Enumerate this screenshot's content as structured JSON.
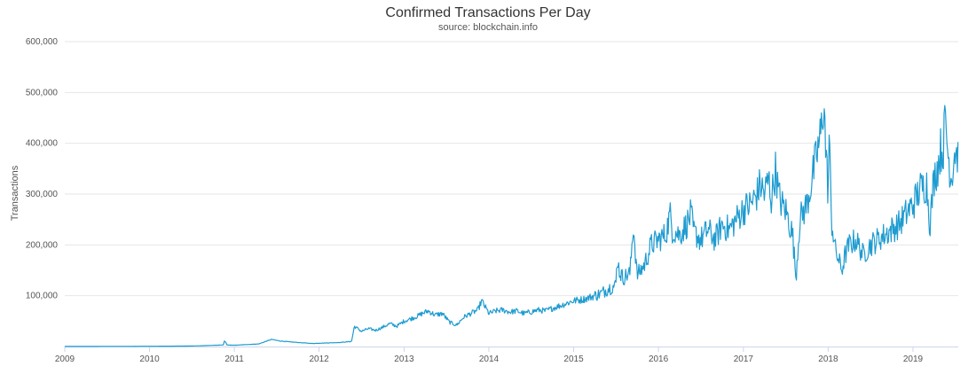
{
  "chart_data": {
    "type": "line",
    "title": "Confirmed Transactions Per Day",
    "subtitle": "source: blockchain.info",
    "ylabel": "Transactions",
    "xlabel": "",
    "x_range": [
      "2009-01-01",
      "2019-07-15"
    ],
    "ylim": [
      0,
      600000
    ],
    "y_ticks": [
      100000,
      200000,
      300000,
      400000,
      500000,
      600000
    ],
    "y_tick_labels": [
      "100,000",
      "200,000",
      "300,000",
      "400,000",
      "500,000",
      "600,000"
    ],
    "x_ticks": [
      "2009",
      "2010",
      "2011",
      "2012",
      "2013",
      "2014",
      "2015",
      "2016",
      "2017",
      "2018",
      "2019"
    ],
    "grid": true,
    "legend": "none",
    "line_color": "#1e9bd0",
    "series": [
      {
        "x": [
          "2009-01-01",
          "2009-07-01",
          "2010-01-01",
          "2010-07-01",
          "2010-11-15",
          "2010-11-20",
          "2010-12-01",
          "2011-01-01",
          "2011-03-01",
          "2011-04-15",
          "2011-06-10",
          "2011-07-15",
          "2011-09-01",
          "2011-12-01",
          "2012-02-01",
          "2012-04-01",
          "2012-05-20",
          "2012-06-01",
          "2012-07-01",
          "2012-08-01",
          "2012-09-01",
          "2012-10-01",
          "2012-11-01",
          "2012-12-01",
          "2013-01-01",
          "2013-02-01",
          "2013-03-01",
          "2013-03-20",
          "2013-04-15",
          "2013-05-15",
          "2013-06-15",
          "2013-07-15",
          "2013-08-15",
          "2013-09-15",
          "2013-10-15",
          "2013-11-15",
          "2013-12-01",
          "2014-01-01",
          "2014-02-01",
          "2014-03-01",
          "2014-04-01",
          "2014-05-01",
          "2014-06-01",
          "2014-07-01",
          "2014-08-01",
          "2014-09-01",
          "2014-10-01",
          "2014-11-01",
          "2014-12-01",
          "2015-01-01",
          "2015-02-01",
          "2015-03-01",
          "2015-04-01",
          "2015-05-01",
          "2015-06-01",
          "2015-07-01",
          "2015-07-10",
          "2015-07-15",
          "2015-08-01",
          "2015-09-01",
          "2015-09-15",
          "2015-10-01",
          "2015-11-01",
          "2015-12-01",
          "2016-01-01",
          "2016-02-01",
          "2016-02-20",
          "2016-03-01",
          "2016-04-01",
          "2016-05-01",
          "2016-05-20",
          "2016-06-01",
          "2016-07-01",
          "2016-08-01",
          "2016-09-01",
          "2016-10-01",
          "2016-11-01",
          "2016-12-01",
          "2017-01-01",
          "2017-02-01",
          "2017-03-01",
          "2017-03-15",
          "2017-04-01",
          "2017-04-20",
          "2017-05-01",
          "2017-05-20",
          "2017-06-01",
          "2017-06-15",
          "2017-07-01",
          "2017-08-01",
          "2017-08-15",
          "2017-09-01",
          "2017-10-01",
          "2017-10-20",
          "2017-11-01",
          "2017-12-01",
          "2017-12-14",
          "2017-12-20",
          "2018-01-01",
          "2018-01-05",
          "2018-01-15",
          "2018-02-01",
          "2018-02-15",
          "2018-03-01",
          "2018-03-15",
          "2018-04-01",
          "2018-05-01",
          "2018-06-01",
          "2018-07-01",
          "2018-08-01",
          "2018-09-01",
          "2018-10-01",
          "2018-11-01",
          "2018-12-01",
          "2019-01-01",
          "2019-02-01",
          "2019-03-01",
          "2019-03-15",
          "2019-04-01",
          "2019-04-20",
          "2019-05-01",
          "2019-05-10",
          "2019-05-20",
          "2019-06-01",
          "2019-06-15",
          "2019-07-01",
          "2019-07-15"
        ],
        "y": [
          100,
          300,
          500,
          1000,
          3000,
          12000,
          3000,
          2500,
          4000,
          5000,
          14000,
          11000,
          9000,
          6000,
          7000,
          8000,
          10000,
          40000,
          30000,
          35000,
          32000,
          38000,
          45000,
          40000,
          50000,
          55000,
          60000,
          65000,
          70000,
          62000,
          65000,
          48000,
          42000,
          58000,
          65000,
          72000,
          90000,
          65000,
          70000,
          72000,
          68000,
          70000,
          65000,
          68000,
          72000,
          70000,
          75000,
          80000,
          85000,
          90000,
          92000,
          95000,
          100000,
          105000,
          115000,
          120000,
          180000,
          150000,
          135000,
          145000,
          240000,
          140000,
          160000,
          200000,
          210000,
          220000,
          260000,
          230000,
          220000,
          240000,
          260000,
          225000,
          210000,
          230000,
          210000,
          240000,
          230000,
          250000,
          270000,
          280000,
          300000,
          320000,
          300000,
          330000,
          290000,
          350000,
          300000,
          280000,
          270000,
          220000,
          135000,
          250000,
          280000,
          320000,
          350000,
          420000,
          490000,
          400000,
          300000,
          420000,
          250000,
          190000,
          170000,
          150000,
          180000,
          200000,
          210000,
          180000,
          200000,
          210000,
          220000,
          230000,
          240000,
          260000,
          280000,
          310000,
          320000,
          240000,
          330000,
          360000,
          390000,
          380000,
          450000,
          380000,
          330000,
          390000,
          370000
        ]
      }
    ]
  }
}
